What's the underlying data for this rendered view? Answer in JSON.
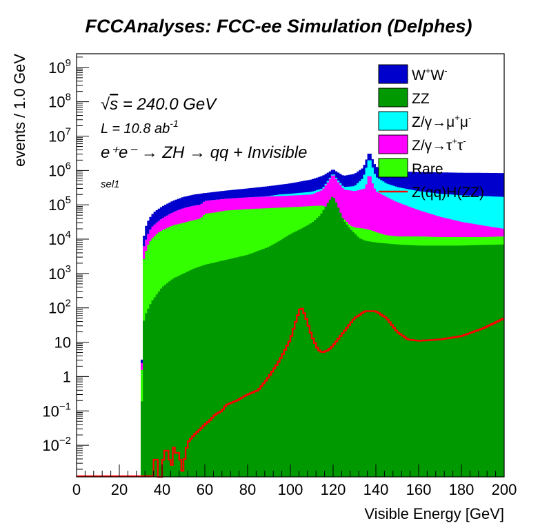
{
  "chart_data": {
    "type": "histogram-stacked",
    "title": "FCCAnalyses: FCC-ee Simulation (Delphes)",
    "xlabel": "Visible Energy [GeV]",
    "ylabel": "events / 1.0 GeV",
    "xlim": [
      0,
      200
    ],
    "ylim": [
      0.0012,
      2500000000
    ],
    "yscale": "log",
    "grid": false,
    "legend_position": "top-right",
    "x_ticks": [
      0,
      20,
      40,
      60,
      80,
      100,
      120,
      140,
      160,
      180,
      200
    ],
    "x_tick_labels": [
      "0",
      "20",
      "40",
      "60",
      "80",
      "100",
      "120",
      "140",
      "160",
      "180",
      "200"
    ],
    "y_ticks": [
      0.01,
      0.1,
      1,
      10,
      100,
      1000,
      10000,
      100000,
      1000000,
      10000000,
      100000000,
      1000000000
    ],
    "y_tick_labels": [
      {
        "base": "10",
        "exp": "−2"
      },
      {
        "base": "10",
        "exp": "−1"
      },
      {
        "base": "1",
        "exp": ""
      },
      {
        "base": "10",
        "exp": ""
      },
      {
        "base": "10",
        "exp": "2"
      },
      {
        "base": "10",
        "exp": "3"
      },
      {
        "base": "10",
        "exp": "4"
      },
      {
        "base": "10",
        "exp": "5"
      },
      {
        "base": "10",
        "exp": "6"
      },
      {
        "base": "10",
        "exp": "7"
      },
      {
        "base": "10",
        "exp": "8"
      },
      {
        "base": "10",
        "exp": "9"
      }
    ],
    "annotations": {
      "sqrt_s": {
        "sym": "√",
        "var": "s",
        "rest": " = 240.0 GeV"
      },
      "lumi": {
        "pre": "L = 10.8 ab",
        "exp": "-1"
      },
      "process": "e⁺e⁻ → ZH → qq + Invisible",
      "selection": "sel1"
    },
    "stack_total_points": [
      [
        30,
        0.0012
      ],
      [
        31,
        8000
      ],
      [
        32,
        20000
      ],
      [
        33,
        30000
      ],
      [
        34,
        40000
      ],
      [
        36,
        60000
      ],
      [
        40,
        90000
      ],
      [
        45,
        130000
      ],
      [
        50,
        170000
      ],
      [
        55,
        200000
      ],
      [
        60,
        220000
      ],
      [
        70,
        260000
      ],
      [
        80,
        300000
      ],
      [
        90,
        350000
      ],
      [
        100,
        420000
      ],
      [
        110,
        550000
      ],
      [
        115,
        700000
      ],
      [
        118,
        900000
      ],
      [
        120,
        1100000
      ],
      [
        122,
        900000
      ],
      [
        125,
        700000
      ],
      [
        130,
        800000
      ],
      [
        134,
        1200000
      ],
      [
        136,
        2500000
      ],
      [
        137,
        3800000
      ],
      [
        138,
        2500000
      ],
      [
        140,
        1300000
      ],
      [
        145,
        1000000
      ],
      [
        150,
        950000
      ],
      [
        160,
        900000
      ],
      [
        170,
        880000
      ],
      [
        180,
        860000
      ],
      [
        190,
        850000
      ],
      [
        200,
        840000
      ]
    ],
    "series": [
      {
        "name": "Rare",
        "label": {
          "text": "Rare"
        },
        "color": "#33ff00",
        "points": [
          [
            30,
            0.0012
          ],
          [
            31,
            2000
          ],
          [
            33,
            6000
          ],
          [
            35,
            10000
          ],
          [
            38,
            15000
          ],
          [
            40,
            18000
          ],
          [
            45,
            25000
          ],
          [
            50,
            30000
          ],
          [
            55,
            36000
          ],
          [
            58,
            40000
          ],
          [
            60,
            55000
          ],
          [
            65,
            60000
          ],
          [
            70,
            68000
          ],
          [
            80,
            75000
          ],
          [
            90,
            80000
          ],
          [
            100,
            85000
          ],
          [
            110,
            92000
          ],
          [
            115,
            95000
          ],
          [
            118,
            80000
          ],
          [
            120,
            60000
          ],
          [
            122,
            55000
          ],
          [
            125,
            40000
          ],
          [
            128,
            25000
          ],
          [
            130,
            22000
          ],
          [
            135,
            20000
          ],
          [
            138,
            18000
          ],
          [
            140,
            16000
          ],
          [
            145,
            13000
          ],
          [
            150,
            12000
          ],
          [
            160,
            12000
          ],
          [
            170,
            11500
          ],
          [
            180,
            11500
          ],
          [
            190,
            11500
          ],
          [
            200,
            12000
          ]
        ]
      },
      {
        "name": "Z/γ→τ⁺τ⁻",
        "label": {
          "pre": "Z/γ→τ",
          "sup1": "+",
          "mid": "τ",
          "sup2": "-"
        },
        "color": "#ff00ff",
        "points": [
          [
            30,
            0.0012
          ],
          [
            31,
            5000
          ],
          [
            33,
            12000
          ],
          [
            35,
            22000
          ],
          [
            38,
            32000
          ],
          [
            40,
            40000
          ],
          [
            45,
            60000
          ],
          [
            50,
            80000
          ],
          [
            55,
            95000
          ],
          [
            58,
            100000
          ],
          [
            60,
            130000
          ],
          [
            65,
            140000
          ],
          [
            70,
            150000
          ],
          [
            80,
            165000
          ],
          [
            90,
            175000
          ],
          [
            100,
            185000
          ],
          [
            110,
            200000
          ],
          [
            115,
            270000
          ],
          [
            118,
            500000
          ],
          [
            120,
            800000
          ],
          [
            122,
            500000
          ],
          [
            125,
            280000
          ],
          [
            130,
            250000
          ],
          [
            135,
            300000
          ],
          [
            137,
            900000
          ],
          [
            138,
            500000
          ],
          [
            140,
            250000
          ],
          [
            145,
            170000
          ],
          [
            150,
            120000
          ],
          [
            160,
            70000
          ],
          [
            170,
            45000
          ],
          [
            180,
            32000
          ],
          [
            190,
            25000
          ],
          [
            200,
            20000
          ]
        ]
      },
      {
        "name": "Z/γ→μ⁺μ⁻",
        "label": {
          "pre": "Z/γ→μ",
          "sup1": "+",
          "mid": "μ",
          "sup2": "-"
        },
        "color": "#00ffff",
        "points": [
          [
            30,
            0.0012
          ],
          [
            31,
            5000
          ],
          [
            33,
            12000
          ],
          [
            35,
            22000
          ],
          [
            38,
            32000
          ],
          [
            40,
            40000
          ],
          [
            45,
            60000
          ],
          [
            50,
            80000
          ],
          [
            55,
            95000
          ],
          [
            58,
            100000
          ],
          [
            60,
            130000
          ],
          [
            65,
            140000
          ],
          [
            70,
            150000
          ],
          [
            80,
            165000
          ],
          [
            88,
            175000
          ],
          [
            90,
            180000
          ],
          [
            95,
            200000
          ],
          [
            100,
            210000
          ],
          [
            110,
            240000
          ],
          [
            115,
            300000
          ],
          [
            118,
            550000
          ],
          [
            120,
            850000
          ],
          [
            122,
            550000
          ],
          [
            125,
            330000
          ],
          [
            130,
            350000
          ],
          [
            134,
            600000
          ],
          [
            136,
            1500000
          ],
          [
            137,
            2600000
          ],
          [
            138,
            1500000
          ],
          [
            140,
            650000
          ],
          [
            145,
            420000
          ],
          [
            150,
            330000
          ],
          [
            160,
            250000
          ],
          [
            170,
            210000
          ],
          [
            180,
            190000
          ],
          [
            190,
            180000
          ],
          [
            200,
            170000
          ]
        ]
      },
      {
        "name": "ZZ",
        "label": {
          "text": "ZZ"
        },
        "color": "#009900",
        "points": [
          [
            30,
            0.0012
          ],
          [
            31,
            30
          ],
          [
            32,
            60
          ],
          [
            35,
            150
          ],
          [
            40,
            400
          ],
          [
            45,
            700
          ],
          [
            50,
            1000
          ],
          [
            55,
            1400
          ],
          [
            60,
            1800
          ],
          [
            70,
            2500
          ],
          [
            80,
            3500
          ],
          [
            90,
            6000
          ],
          [
            95,
            9000
          ],
          [
            100,
            14000
          ],
          [
            105,
            20000
          ],
          [
            110,
            30000
          ],
          [
            114,
            50000
          ],
          [
            117,
            100000
          ],
          [
            119,
            160000
          ],
          [
            120,
            180000
          ],
          [
            121,
            140000
          ],
          [
            123,
            70000
          ],
          [
            125,
            35000
          ],
          [
            128,
            20000
          ],
          [
            130,
            15000
          ],
          [
            132,
            11000
          ],
          [
            135,
            9000
          ],
          [
            140,
            8000
          ],
          [
            145,
            7500
          ],
          [
            150,
            7000
          ],
          [
            160,
            6500
          ],
          [
            170,
            6500
          ],
          [
            180,
            6500
          ],
          [
            190,
            6800
          ],
          [
            200,
            7000
          ]
        ]
      },
      {
        "name": "W⁺W⁻",
        "label": {
          "pre": "W",
          "sup1": "+",
          "mid": "W",
          "sup2": "-"
        },
        "color": "#0000cc",
        "points": []
      },
      {
        "name": "Z(qq)H(ZZ)",
        "label": {
          "text": "Z(qq)H(ZZ)"
        },
        "color": "#ff0000",
        "points": [
          [
            36,
            0.0012
          ],
          [
            37,
            0.012
          ],
          [
            38,
            0.0012
          ],
          [
            40,
            0.0012
          ],
          [
            41,
            0.012
          ],
          [
            42,
            0.004
          ],
          [
            43,
            0.012
          ],
          [
            44,
            0.0012
          ],
          [
            45,
            0.006
          ],
          [
            46,
            0.012
          ],
          [
            47,
            0.003
          ],
          [
            48,
            0.012
          ],
          [
            49,
            0.0012
          ],
          [
            51,
            0.006
          ],
          [
            52,
            0.012
          ],
          [
            55,
            0.02
          ],
          [
            58,
            0.03
          ],
          [
            60,
            0.04
          ],
          [
            62,
            0.05
          ],
          [
            65,
            0.08
          ],
          [
            68,
            0.1
          ],
          [
            70,
            0.15
          ],
          [
            75,
            0.2
          ],
          [
            80,
            0.3
          ],
          [
            85,
            0.4
          ],
          [
            90,
            1
          ],
          [
            95,
            3
          ],
          [
            100,
            12
          ],
          [
            103,
            50
          ],
          [
            105,
            110
          ],
          [
            107,
            60
          ],
          [
            110,
            15
          ],
          [
            113,
            6
          ],
          [
            115,
            5
          ],
          [
            118,
            6
          ],
          [
            120,
            8
          ],
          [
            125,
            20
          ],
          [
            130,
            50
          ],
          [
            135,
            80
          ],
          [
            140,
            80
          ],
          [
            145,
            50
          ],
          [
            150,
            20
          ],
          [
            155,
            12
          ],
          [
            160,
            11
          ],
          [
            170,
            12
          ],
          [
            180,
            15
          ],
          [
            190,
            25
          ],
          [
            195,
            35
          ],
          [
            200,
            50
          ]
        ]
      }
    ]
  }
}
